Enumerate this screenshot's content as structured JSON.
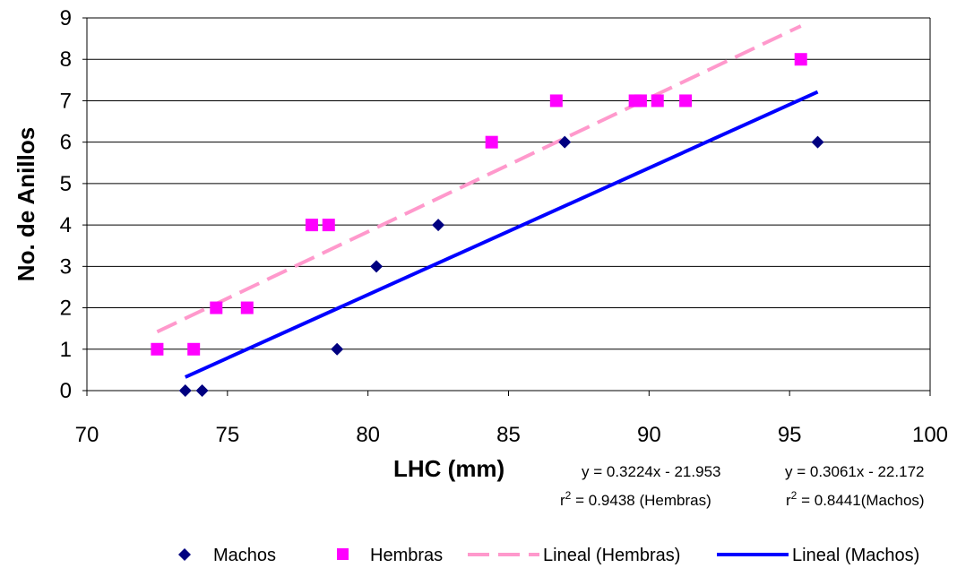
{
  "chart_data": {
    "type": "scatter",
    "xlabel": "LHC (mm)",
    "ylabel": "No. de Anillos",
    "xlim": [
      70,
      100
    ],
    "ylim": [
      0,
      9
    ],
    "xticks": [
      "70",
      "75",
      "80",
      "85",
      "90",
      "95",
      "100"
    ],
    "yticks": [
      "0",
      "1",
      "2",
      "3",
      "4",
      "5",
      "6",
      "7",
      "8",
      "9"
    ],
    "grid": "horizontal",
    "legend_position": "bottom",
    "series": [
      {
        "name": "Machos",
        "marker": "diamond",
        "color": "#000080",
        "points": [
          [
            73.5,
            0
          ],
          [
            74.1,
            0
          ],
          [
            78.9,
            1
          ],
          [
            80.3,
            3
          ],
          [
            82.5,
            4
          ],
          [
            87.0,
            6
          ],
          [
            96.0,
            6
          ]
        ]
      },
      {
        "name": "Hembras",
        "marker": "square",
        "color": "#ff00ff",
        "points": [
          [
            72.5,
            1
          ],
          [
            73.8,
            1
          ],
          [
            74.6,
            2
          ],
          [
            75.7,
            2
          ],
          [
            78.0,
            4
          ],
          [
            78.6,
            4
          ],
          [
            84.4,
            6
          ],
          [
            86.7,
            7
          ],
          [
            89.5,
            7
          ],
          [
            89.7,
            7
          ],
          [
            90.3,
            7
          ],
          [
            91.3,
            7
          ],
          [
            95.4,
            8
          ]
        ]
      }
    ],
    "trendlines": [
      {
        "name": "Lineal (Hembras)",
        "style": "dashed",
        "color": "#ff99cc",
        "slope": 0.3224,
        "intercept": -21.953,
        "x_range": [
          72.5,
          95.4
        ],
        "equation": "y = 0.3224x - 21.953",
        "r2_prefix": "r",
        "r2_sup": "2",
        "r2_rest": " = 0.9438 (Hembras)"
      },
      {
        "name": "Lineal (Machos)",
        "style": "solid",
        "color": "#0000ff",
        "slope": 0.3061,
        "intercept": -22.172,
        "x_range": [
          73.5,
          96.0
        ],
        "equation": "y = 0.3061x - 22.172",
        "r2_prefix": "r",
        "r2_sup": "2",
        "r2_rest": " = 0.8441(Machos)"
      }
    ],
    "legend": [
      "Machos",
      "Hembras",
      "Lineal (Hembras)",
      "Lineal (Machos)"
    ]
  }
}
